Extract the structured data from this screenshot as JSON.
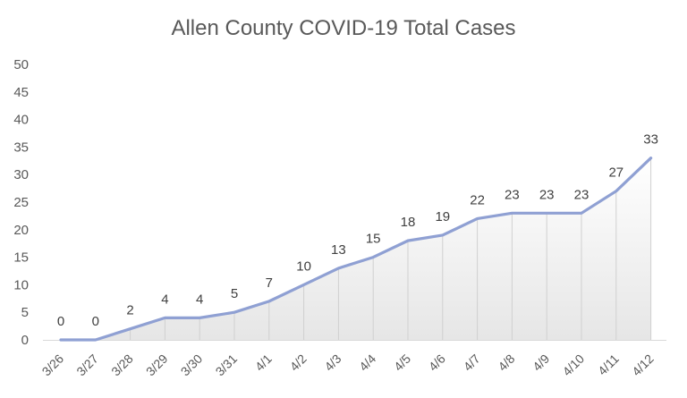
{
  "chart_data": {
    "type": "area",
    "title": "Allen County COVID-19 Total Cases",
    "xlabel": "",
    "ylabel": "",
    "categories": [
      "3/26",
      "3/27",
      "3/28",
      "3/29",
      "3/30",
      "3/31",
      "4/1",
      "4/2",
      "4/3",
      "4/4",
      "4/5",
      "4/6",
      "4/7",
      "4/8",
      "4/9",
      "4/10",
      "4/11",
      "4/12"
    ],
    "series": [
      {
        "values": [
          0,
          0,
          2,
          4,
          4,
          5,
          7,
          10,
          13,
          15,
          18,
          19,
          22,
          23,
          23,
          23,
          27,
          33
        ]
      }
    ],
    "ylim": [
      0,
      50
    ],
    "yticks": [
      0,
      5,
      10,
      15,
      20,
      25,
      30,
      35,
      40,
      45,
      50
    ],
    "grid": false,
    "legend": "none",
    "data_labels": true,
    "colors": {
      "line": "#8fa0d3",
      "fill_top": "#ffffff",
      "fill_bottom": "#e6e6e6",
      "drop_lines": "#d0d0d0",
      "axis": "#d9d9d9",
      "text": "#595959"
    }
  }
}
